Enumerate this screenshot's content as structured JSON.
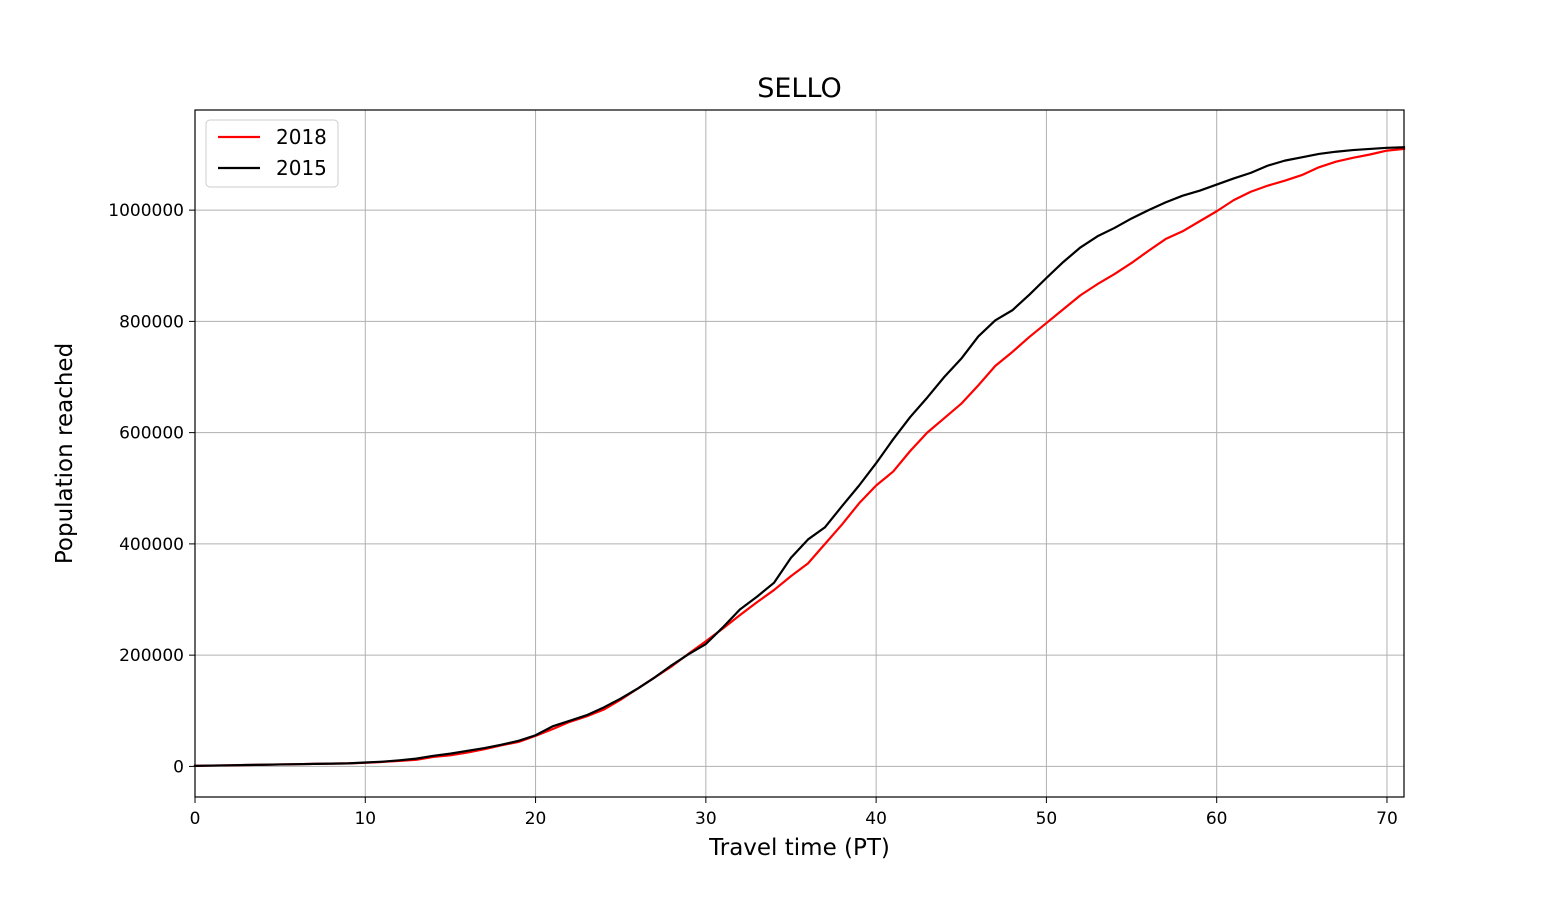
{
  "chart_data": {
    "type": "line",
    "title": "SELLO",
    "xlabel": "Travel time (PT)",
    "ylabel": "Population reached",
    "xlim": [
      0,
      71
    ],
    "ylim": [
      -55000,
      1180000
    ],
    "xticks": [
      0,
      10,
      20,
      30,
      40,
      50,
      60,
      70
    ],
    "xtick_labels": [
      "0",
      "10",
      "20",
      "30",
      "40",
      "50",
      "60",
      "70"
    ],
    "yticks": [
      0,
      200000,
      400000,
      600000,
      800000,
      1000000
    ],
    "ytick_labels": [
      "0",
      "200000",
      "400000",
      "600000",
      "800000",
      "1000000"
    ],
    "grid": true,
    "legend_position": "upper-left",
    "series": [
      {
        "name": "2018",
        "color": "#ff0000",
        "x": [
          0,
          1,
          2,
          3,
          4,
          5,
          6,
          7,
          8,
          9,
          10,
          11,
          12,
          13,
          14,
          15,
          16,
          17,
          18,
          19,
          20,
          21,
          22,
          23,
          24,
          25,
          26,
          27,
          28,
          29,
          30,
          31,
          32,
          33,
          34,
          35,
          36,
          37,
          38,
          39,
          40,
          41,
          42,
          43,
          44,
          45,
          46,
          47,
          48,
          49,
          50,
          51,
          52,
          53,
          54,
          55,
          56,
          57,
          58,
          59,
          60,
          61,
          62,
          63,
          64,
          65,
          66,
          67,
          68,
          69,
          70,
          71
        ],
        "values": [
          1000,
          1500,
          2000,
          2500,
          3000,
          3500,
          4000,
          4500,
          5000,
          5500,
          6500,
          8000,
          10000,
          12000,
          17000,
          20000,
          25000,
          31000,
          38000,
          44000,
          55000,
          67000,
          80000,
          90000,
          102000,
          120000,
          140000,
          160000,
          180000,
          203000,
          225000,
          248000,
          272000,
          295000,
          317000,
          342000,
          365000,
          400000,
          435000,
          473000,
          505000,
          530000,
          567000,
          600000,
          626000,
          652000,
          685000,
          720000,
          745000,
          772000,
          797000,
          822000,
          847000,
          867000,
          885000,
          905000,
          927000,
          948000,
          962000,
          980000,
          998000,
          1018000,
          1033000,
          1044000,
          1053000,
          1063000,
          1077000,
          1087000,
          1094000,
          1100000,
          1107000,
          1110000
        ]
      },
      {
        "name": "2015",
        "color": "#000000",
        "x": [
          0,
          1,
          2,
          3,
          4,
          5,
          6,
          7,
          8,
          9,
          10,
          11,
          12,
          13,
          14,
          15,
          16,
          17,
          18,
          19,
          20,
          21,
          22,
          23,
          24,
          25,
          26,
          27,
          28,
          29,
          30,
          31,
          32,
          33,
          34,
          35,
          36,
          37,
          38,
          39,
          40,
          41,
          42,
          43,
          44,
          45,
          46,
          47,
          48,
          49,
          50,
          51,
          52,
          53,
          54,
          55,
          56,
          57,
          58,
          59,
          60,
          61,
          62,
          63,
          64,
          65,
          66,
          67,
          68,
          69,
          70,
          71
        ],
        "values": [
          1000,
          1500,
          2000,
          2500,
          3000,
          3500,
          4000,
          4500,
          5000,
          5500,
          7000,
          8500,
          11000,
          14000,
          19000,
          23000,
          28000,
          33000,
          39000,
          46000,
          56000,
          72000,
          82000,
          92000,
          106000,
          122000,
          140000,
          160000,
          182000,
          202000,
          220000,
          250000,
          282000,
          305000,
          330000,
          375000,
          408000,
          430000,
          468000,
          505000,
          545000,
          588000,
          628000,
          663000,
          700000,
          733000,
          773000,
          802000,
          820000,
          848000,
          878000,
          907000,
          933000,
          953000,
          968000,
          985000,
          1000000,
          1014000,
          1026000,
          1035000,
          1046000,
          1057000,
          1067000,
          1080000,
          1089000,
          1095000,
          1101000,
          1105000,
          1108000,
          1110000,
          1112000,
          1113000
        ]
      }
    ]
  }
}
